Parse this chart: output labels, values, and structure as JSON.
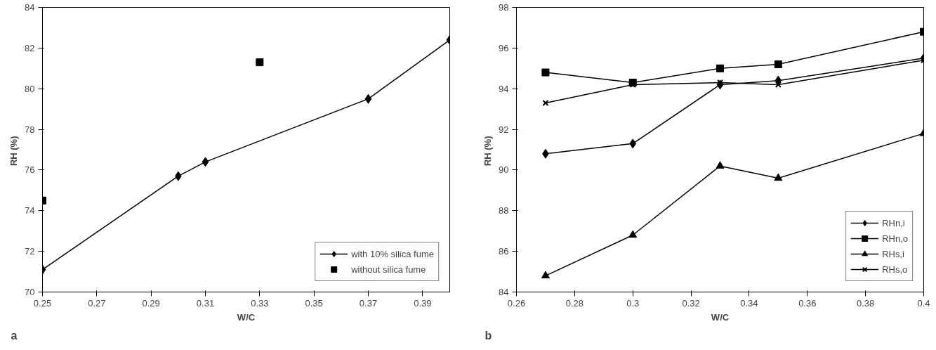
{
  "chart_data": [
    {
      "type": "line",
      "xlabel": "W/C",
      "ylabel": "RH  (%)",
      "annotations": [
        "a"
      ],
      "xlim": [
        0.25,
        0.4
      ],
      "xticks": [
        0.25,
        0.27,
        0.29,
        0.31,
        0.33,
        0.35,
        0.37,
        0.39
      ],
      "ylim": [
        70,
        84
      ],
      "yticks": [
        70,
        72,
        74,
        76,
        78,
        80,
        82,
        84
      ],
      "grid": false,
      "legend": "bottom right",
      "series": [
        {
          "name": "with 10% silica fume",
          "color": "#000000",
          "marker": "diamond",
          "x": [
            0.25,
            0.3,
            0.31,
            0.37,
            0.4
          ],
          "values": [
            71.1,
            75.7,
            76.4,
            79.5,
            82.4
          ]
        },
        {
          "name": "without silica fume",
          "type": "scatter",
          "color": "#000000",
          "marker": "square",
          "x": [
            0.25,
            0.33
          ],
          "values": [
            74.5,
            81.3
          ]
        }
      ]
    },
    {
      "type": "line",
      "xlabel": "W/C",
      "ylabel": "RH  (%)",
      "annotations": [
        "b"
      ],
      "xlim": [
        0.26,
        0.4
      ],
      "xticks": [
        0.26,
        0.28,
        0.3,
        0.32,
        0.34,
        0.36,
        0.38,
        0.4
      ],
      "ylim": [
        84,
        98
      ],
      "yticks": [
        84,
        86,
        88,
        90,
        92,
        94,
        96,
        98
      ],
      "grid": false,
      "legend": "bottom right",
      "x": [
        0.27,
        0.3,
        0.33,
        0.35,
        0.4
      ],
      "series": [
        {
          "name": "RHn,i",
          "color": "#000000",
          "marker": "diamond",
          "values": [
            90.8,
            91.3,
            94.2,
            94.4,
            95.5
          ]
        },
        {
          "name": "RHn,o",
          "color": "#000000",
          "marker": "square",
          "values": [
            94.8,
            94.3,
            95.0,
            95.2,
            96.8
          ]
        },
        {
          "name": "RHs,i",
          "color": "#000000",
          "marker": "triangle",
          "values": [
            84.8,
            86.8,
            90.2,
            89.6,
            91.8
          ]
        },
        {
          "name": "RHs,o",
          "color": "#000000",
          "marker": "cross",
          "values": [
            93.3,
            94.2,
            94.3,
            94.2,
            95.4
          ]
        }
      ]
    }
  ]
}
